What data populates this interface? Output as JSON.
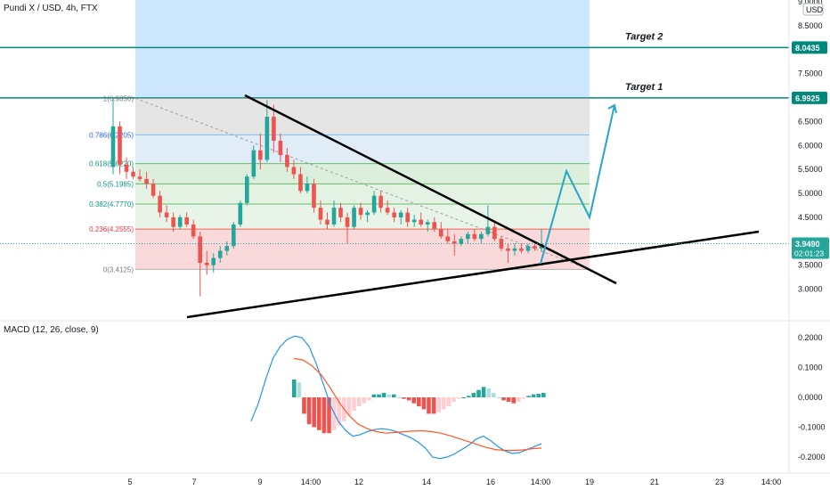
{
  "header": {
    "title": "Pundi X / USD, 4h, FTX",
    "currency": "USD"
  },
  "colors": {
    "up": "#26a69a",
    "down": "#ef5350",
    "macd_line": "#2196f3",
    "signal_line": "#ff5722",
    "target_line": "#00897b",
    "projection": "#26a7c7",
    "trendline": "#000000"
  },
  "chart_data": [
    {
      "type": "candlestick",
      "title": "Pundi X / USD, 4h, FTX",
      "ylim": [
        2.75,
        9.0
      ],
      "y_ticks": [
        "9.0000",
        "8.5000",
        "8.0435",
        "7.5000",
        "6.9925",
        "6.5000",
        "6.0000",
        "5.5000",
        "5.0000",
        "4.5000",
        "3.9490",
        "3.5000",
        "3.0000"
      ],
      "x_ticks": [
        "5",
        "7",
        "9",
        "14:00",
        "12",
        "14",
        "16",
        "14:00",
        "19",
        "21",
        "23",
        "14:00"
      ],
      "price_label": "3.9490",
      "countdown": "02:01:23",
      "fib_levels": [
        {
          "ratio": "1",
          "price": "6.9850"
        },
        {
          "ratio": "0.786",
          "price": "6.2205"
        },
        {
          "ratio": "0.618",
          "price": "5.6220"
        },
        {
          "ratio": "0.5",
          "price": "5.1985"
        },
        {
          "ratio": "0.382",
          "price": "4.7770"
        },
        {
          "ratio": "0.236",
          "price": "4.2555"
        },
        {
          "ratio": "0",
          "price": "3.4125"
        }
      ],
      "targets": [
        {
          "label": "Target 2",
          "price": "8.0435"
        },
        {
          "label": "Target 1",
          "price": "6.9925"
        }
      ],
      "candles": [
        [
          5.55,
          6.99,
          5.4,
          6.4
        ],
        [
          6.4,
          6.5,
          5.4,
          5.6
        ],
        [
          5.6,
          5.75,
          5.3,
          5.45
        ],
        [
          5.45,
          5.55,
          5.3,
          5.35
        ],
        [
          5.35,
          5.5,
          5.25,
          5.3
        ],
        [
          5.3,
          5.45,
          5.1,
          5.2
        ],
        [
          5.2,
          5.3,
          4.9,
          4.95
        ],
        [
          4.95,
          5.05,
          4.5,
          4.6
        ],
        [
          4.6,
          4.75,
          4.4,
          4.5
        ],
        [
          4.5,
          4.6,
          4.2,
          4.3
        ],
        [
          4.3,
          4.55,
          4.25,
          4.5
        ],
        [
          4.5,
          4.6,
          4.3,
          4.35
        ],
        [
          4.35,
          4.45,
          4.05,
          4.1
        ],
        [
          4.1,
          4.2,
          2.85,
          3.55
        ],
        [
          3.55,
          3.8,
          3.3,
          3.5
        ],
        [
          3.5,
          3.75,
          3.35,
          3.65
        ],
        [
          3.65,
          3.9,
          3.55,
          3.8
        ],
        [
          3.8,
          4.0,
          3.7,
          3.9
        ],
        [
          3.9,
          4.4,
          3.85,
          4.35
        ],
        [
          4.35,
          4.85,
          4.3,
          4.8
        ],
        [
          4.8,
          5.4,
          4.75,
          5.35
        ],
        [
          5.35,
          6.0,
          5.3,
          5.9
        ],
        [
          5.9,
          6.25,
          5.5,
          5.7
        ],
        [
          5.7,
          6.95,
          5.65,
          6.6
        ],
        [
          6.6,
          6.85,
          5.85,
          6.1
        ],
        [
          6.1,
          6.25,
          5.65,
          5.8
        ],
        [
          5.8,
          5.95,
          5.45,
          5.55
        ],
        [
          5.55,
          5.7,
          5.3,
          5.4
        ],
        [
          5.4,
          5.55,
          5.0,
          5.05
        ],
        [
          5.05,
          5.35,
          5.0,
          5.2
        ],
        [
          5.2,
          5.3,
          4.6,
          4.7
        ],
        [
          4.7,
          4.85,
          4.35,
          4.45
        ],
        [
          4.45,
          4.6,
          4.25,
          4.35
        ],
        [
          4.35,
          4.85,
          4.3,
          4.7
        ],
        [
          4.7,
          4.8,
          4.4,
          4.5
        ],
        [
          4.5,
          4.6,
          3.95,
          4.3
        ],
        [
          4.3,
          4.75,
          4.25,
          4.7
        ],
        [
          4.7,
          4.8,
          4.45,
          4.55
        ],
        [
          4.55,
          4.65,
          4.4,
          4.6
        ],
        [
          4.6,
          5.05,
          4.55,
          4.95
        ],
        [
          4.95,
          5.05,
          4.6,
          4.7
        ],
        [
          4.7,
          4.85,
          4.55,
          4.6
        ],
        [
          4.6,
          4.7,
          4.4,
          4.5
        ],
        [
          4.5,
          4.65,
          4.35,
          4.6
        ],
        [
          4.6,
          4.7,
          4.3,
          4.4
        ],
        [
          4.4,
          4.55,
          4.3,
          4.45
        ],
        [
          4.45,
          4.6,
          4.3,
          4.35
        ],
        [
          4.35,
          4.45,
          4.2,
          4.4
        ],
        [
          4.4,
          4.5,
          4.2,
          4.25
        ],
        [
          4.25,
          4.4,
          4.05,
          4.1
        ],
        [
          4.1,
          4.25,
          3.95,
          4.0
        ],
        [
          4.0,
          4.15,
          3.7,
          3.95
        ],
        [
          3.95,
          4.1,
          3.9,
          4.05
        ],
        [
          4.05,
          4.2,
          3.95,
          4.15
        ],
        [
          4.15,
          4.25,
          4.0,
          4.05
        ],
        [
          4.05,
          4.2,
          3.95,
          4.15
        ],
        [
          4.15,
          4.75,
          4.1,
          4.3
        ],
        [
          4.3,
          4.4,
          4.0,
          4.05
        ],
        [
          4.05,
          4.1,
          3.8,
          3.85
        ],
        [
          3.85,
          3.95,
          3.55,
          3.8
        ],
        [
          3.8,
          3.95,
          3.7,
          3.85
        ],
        [
          3.85,
          3.95,
          3.75,
          3.8
        ],
        [
          3.8,
          3.95,
          3.75,
          3.9
        ],
        [
          3.9,
          4.0,
          3.8,
          3.85
        ],
        [
          3.85,
          4.25,
          3.8,
          3.95
        ]
      ]
    },
    {
      "type": "line",
      "title": "MACD (12, 26, close, 9)",
      "ylim": [
        -0.23,
        0.23
      ],
      "y_ticks": [
        "0.2000",
        "0.1000",
        "0.0000",
        "-0.1000",
        "-0.2000"
      ],
      "series": [
        {
          "values": [
            -0.08,
            -0.02,
            0.06,
            0.13,
            0.17,
            0.195,
            0.205,
            0.2,
            0.17,
            0.11,
            0.04,
            -0.03,
            -0.08,
            -0.11,
            -0.13,
            -0.125,
            -0.115,
            -0.108,
            -0.105,
            -0.108,
            -0.115,
            -0.125,
            -0.135,
            -0.15,
            -0.17,
            -0.2,
            -0.205,
            -0.2,
            -0.19,
            -0.175,
            -0.16,
            -0.14,
            -0.13,
            -0.145,
            -0.165,
            -0.18,
            -0.188,
            -0.185,
            -0.175,
            -0.165,
            -0.155
          ]
        },
        {
          "values": [
            0.13,
            0.125,
            0.105,
            0.075,
            0.03,
            -0.02,
            -0.06,
            -0.09,
            -0.105,
            -0.115,
            -0.12,
            -0.118,
            -0.115,
            -0.113,
            -0.112,
            -0.115,
            -0.12,
            -0.128,
            -0.138,
            -0.148,
            -0.158,
            -0.168,
            -0.175,
            -0.178,
            -0.178,
            -0.176,
            -0.172,
            -0.17
          ]
        }
      ],
      "histogram": [
        0.06,
        0.05,
        -0.055,
        -0.09,
        -0.1,
        -0.11,
        -0.12,
        -0.12,
        -0.11,
        -0.095,
        -0.08,
        -0.06,
        -0.045,
        -0.03,
        -0.02,
        -0.01,
        0.01,
        0.01,
        0.015,
        0.01,
        0.01,
        0.0,
        -0.005,
        -0.01,
        -0.02,
        -0.03,
        -0.04,
        -0.055,
        -0.055,
        -0.05,
        -0.04,
        -0.03,
        -0.015,
        -0.005,
        0.0,
        0.005,
        0.015,
        0.025,
        0.035,
        0.03,
        0.015,
        0.0,
        -0.01,
        -0.015,
        -0.02,
        -0.015,
        -0.005,
        0.005,
        0.01,
        0.012,
        0.015
      ]
    }
  ]
}
